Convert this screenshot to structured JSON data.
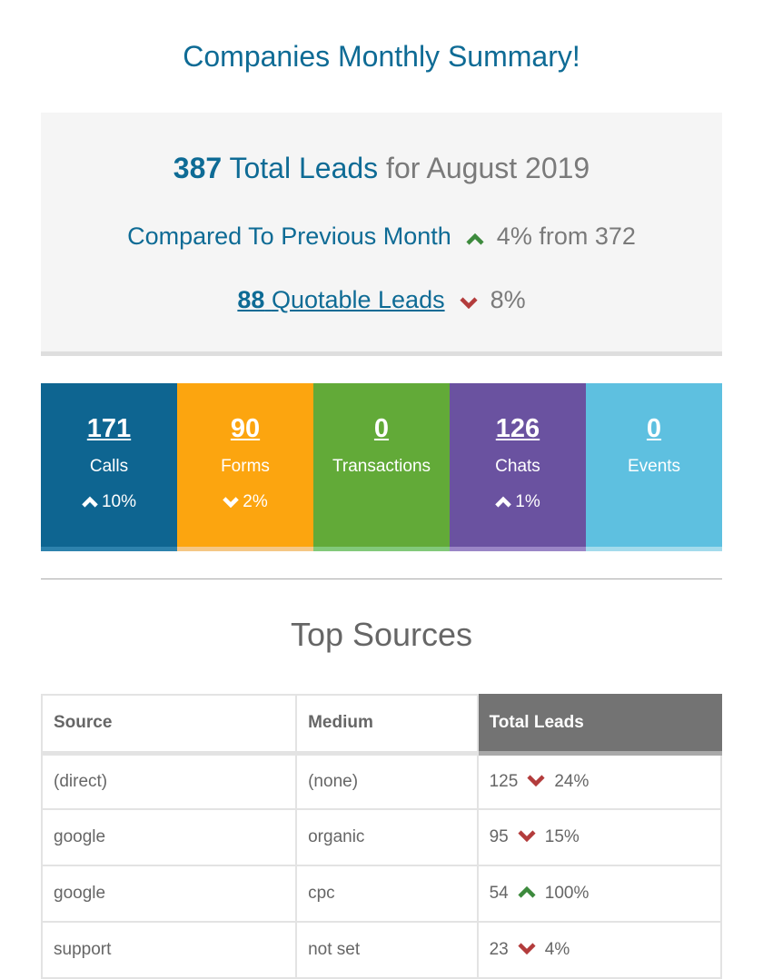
{
  "title": "Companies Monthly Summary!",
  "summary": {
    "total_number": "387",
    "total_label": "Total Leads",
    "period": "for August 2019",
    "compare_label": "Compared To Previous Month",
    "compare_direction": "up",
    "compare_value": "4% from 372",
    "quotable_number": "88",
    "quotable_label": "Quotable Leads",
    "quotable_direction": "down",
    "quotable_change": "8%"
  },
  "tiles": [
    {
      "value": "171",
      "label": "Calls",
      "change": "10%",
      "direction": "up",
      "color": "#0e6591",
      "bar": "#2d82ad"
    },
    {
      "value": "90",
      "label": "Forms",
      "change": "2%",
      "direction": "down",
      "color": "#fca50f",
      "bar": "#f5c785"
    },
    {
      "value": "0",
      "label": "Transactions",
      "change": "",
      "direction": "",
      "color": "#62aa38",
      "bar": "#82c97a"
    },
    {
      "value": "126",
      "label": "Chats",
      "change": "1%",
      "direction": "up",
      "color": "#6a52a0",
      "bar": "#9a86c6"
    },
    {
      "value": "0",
      "label": "Events",
      "change": "",
      "direction": "",
      "color": "#5ec0e0",
      "bar": "#a3dbec"
    }
  ],
  "sources": {
    "title": "Top Sources",
    "headers": [
      "Source",
      "Medium",
      "Total Leads"
    ],
    "rows": [
      {
        "source": "(direct)",
        "medium": "(none)",
        "total": "125",
        "direction": "down",
        "change": "24%"
      },
      {
        "source": "google",
        "medium": "organic",
        "total": "95",
        "direction": "down",
        "change": "15%"
      },
      {
        "source": "google",
        "medium": "cpc",
        "total": "54",
        "direction": "up",
        "change": "100%"
      },
      {
        "source": "support",
        "medium": "not set",
        "total": "23",
        "direction": "down",
        "change": "4%"
      }
    ]
  },
  "colors": {
    "up": "#3d8a3d",
    "down": "#b33c3c",
    "brand": "#0e6b95"
  },
  "icons": {
    "up": "chevron-up-icon",
    "down": "chevron-down-icon"
  }
}
